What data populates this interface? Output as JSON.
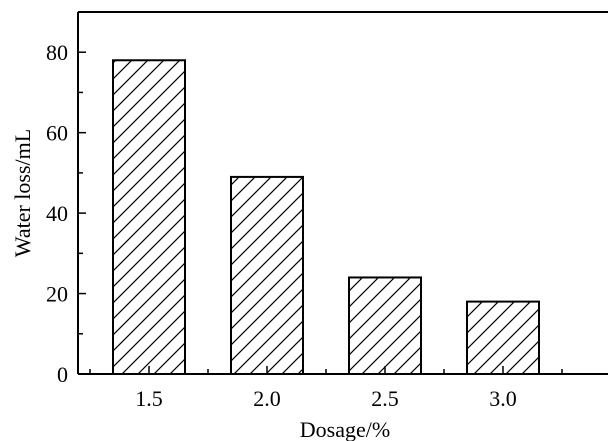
{
  "chart_data": {
    "type": "bar",
    "categories": [
      "1.5",
      "2.0",
      "2.5",
      "3.0"
    ],
    "values": [
      78,
      49,
      24,
      18
    ],
    "xlabel": "Dosage/%",
    "ylabel": "Water loss/mL",
    "ylim": [
      0,
      90
    ],
    "yticks": [
      0,
      20,
      40,
      60,
      80
    ],
    "grid": false,
    "bar_fill": "hatched-diagonal",
    "colors": {
      "bar_stroke": "#000000",
      "hatch": "#000000",
      "background": "#ffffff"
    }
  }
}
